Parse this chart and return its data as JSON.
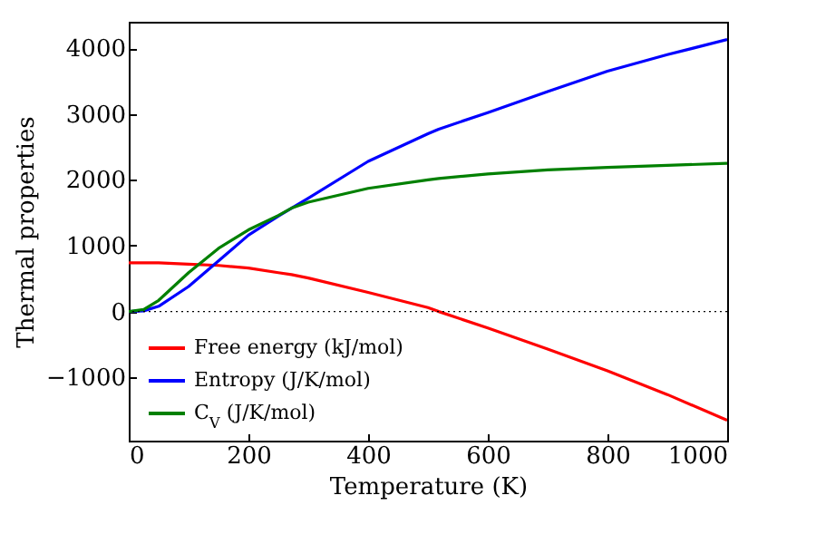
{
  "chart_data": {
    "type": "line",
    "xlabel": "Temperature (K)",
    "ylabel": "Thermal properties",
    "x": [
      0,
      25,
      50,
      100,
      150,
      200,
      250,
      272,
      300,
      400,
      500,
      518,
      600,
      700,
      800,
      900,
      1000
    ],
    "series": [
      {
        "name": "Free energy (kJ/mol)",
        "color": "#ff0000",
        "values": [
          740,
          740,
          740,
          720,
          700,
          660,
          590,
          560,
          510,
          290,
          60,
          0,
          -250,
          -570,
          -900,
          -1260,
          -1650
        ]
      },
      {
        "name": "Entropy (J/K/mol)",
        "color": "#0000ff",
        "values": [
          0,
          10,
          80,
          380,
          770,
          1160,
          1450,
          1570,
          1720,
          2280,
          2700,
          2770,
          3020,
          3340,
          3650,
          3900,
          4130
        ]
      },
      {
        "name": "C$_{V}$ (J/K/mol)",
        "color": "#008000",
        "values": [
          0,
          30,
          170,
          590,
          960,
          1240,
          1460,
          1570,
          1660,
          1870,
          2000,
          2020,
          2090,
          2150,
          2190,
          2220,
          2250
        ]
      }
    ],
    "xlim": [
      0,
      1000
    ],
    "xticks": [
      0,
      200,
      400,
      600,
      800,
      1000
    ],
    "ylim": [
      -1960,
      4400
    ],
    "yticks": [
      -1000,
      0,
      1000,
      2000,
      3000,
      4000
    ],
    "ref_lines": [
      {
        "axis": "y",
        "value": 0,
        "color": "#000000",
        "line_style": "dotted"
      }
    ],
    "grid": false,
    "legend": "bottom left",
    "line_style": "solid",
    "marker": "none"
  }
}
